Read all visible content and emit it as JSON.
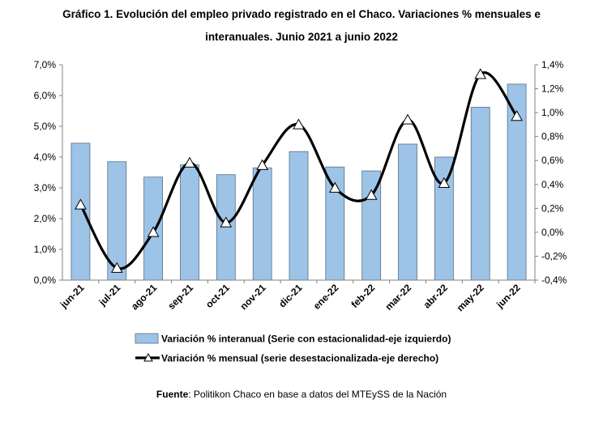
{
  "title_line1": "Gráfico 1. Evolución del empleo privado registrado en el Chaco. Variaciones % mensuales e",
  "title_line2": "interanuales. Junio 2021 a junio 2022",
  "source_label": "Fuente",
  "source_text": ": Politikon Chaco en base a datos del MTEySS de la Nación",
  "colors": {
    "bar_fill": "#9dc3e6",
    "bar_stroke": "#5a6f85",
    "line": "#000000",
    "marker_fill": "#ffffff"
  },
  "chart_data": {
    "type": "bar+line",
    "categories": [
      "jun-21",
      "jul-21",
      "ago-21",
      "sep-21",
      "oct-21",
      "nov-21",
      "dic-21",
      "ene-22",
      "feb-22",
      "mar-22",
      "abr-22",
      "may-22",
      "jun-22"
    ],
    "series": [
      {
        "name": "Variación % interanual (Serie con estacionalidad-eje izquierdo)",
        "type": "bar",
        "axis": "left",
        "values": [
          4.45,
          3.85,
          3.35,
          3.75,
          3.43,
          3.65,
          4.18,
          3.68,
          3.55,
          4.42,
          4.0,
          5.62,
          6.37
        ]
      },
      {
        "name": "Variación % mensual (serie desestacionalizada-eje derecho)",
        "type": "line",
        "axis": "right",
        "values": [
          0.23,
          -0.3,
          0.0,
          0.58,
          0.08,
          0.56,
          0.9,
          0.37,
          0.31,
          0.94,
          0.41,
          1.32,
          0.97
        ]
      }
    ],
    "left_axis": {
      "ylim": [
        0,
        7
      ],
      "ticks": [
        "0,0%",
        "1,0%",
        "2,0%",
        "3,0%",
        "4,0%",
        "5,0%",
        "6,0%",
        "7,0%"
      ]
    },
    "right_axis": {
      "ylim": [
        -0.4,
        1.4
      ],
      "ticks": [
        "-0,4%",
        "-0,2%",
        "0,0%",
        "0,2%",
        "0,4%",
        "0,6%",
        "0,8%",
        "1,0%",
        "1,2%",
        "1,4%"
      ]
    },
    "grid": false,
    "legend_position": "bottom"
  }
}
